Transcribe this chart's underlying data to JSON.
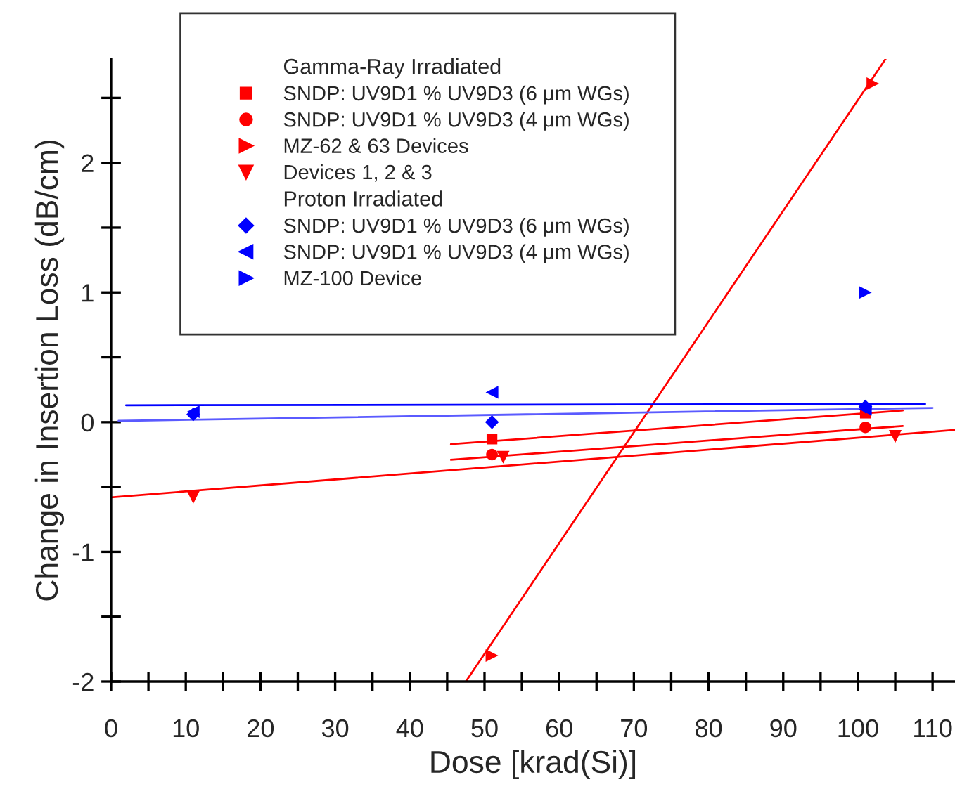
{
  "chart_data": {
    "type": "scatter",
    "xlabel": "Dose [krad(Si)]",
    "ylabel": "Change in Insertion Loss (dB/cm)",
    "annotations": [
      "Gamma-Ray Irradiated",
      "Proton Irradiated"
    ],
    "xlim": [
      0,
      113
    ],
    "ylim": [
      -2,
      2.8
    ],
    "xticks": [
      0,
      {
        "value": 5,
        "label": null
      },
      10,
      {
        "value": 15,
        "label": null
      },
      20,
      {
        "value": 25,
        "label": null
      },
      30,
      {
        "value": 35,
        "label": null
      },
      40,
      {
        "value": 45,
        "label": null
      },
      50,
      {
        "value": 55,
        "label": null
      },
      60,
      {
        "value": 65,
        "label": null
      },
      70,
      {
        "value": 75,
        "label": null
      },
      80,
      {
        "value": 85,
        "label": null
      },
      90,
      {
        "value": 95,
        "label": null
      },
      100,
      {
        "value": 105,
        "label": null
      },
      110
    ],
    "yticks": [
      -2,
      {
        "value": -1.5,
        "label": null
      },
      -1,
      {
        "value": -0.5,
        "label": null
      },
      0,
      {
        "value": 0.5,
        "label": null
      },
      1,
      {
        "value": 1.5,
        "label": null
      },
      2,
      {
        "value": 2.5,
        "label": null
      }
    ],
    "legend": "top left",
    "grid": false,
    "series": [
      {
        "name": "SNDP: UV9D1 % UV9D3 (6 μm WGs)",
        "color": "#ff0000",
        "marker": "square",
        "x": [
          51,
          101
        ],
        "values": [
          -0.13,
          0.07
        ]
      },
      {
        "name": "SNDP: UV9D1 % UV9D3 (4 μm WGs)",
        "color": "#ff0000",
        "marker": "circle",
        "x": [
          51,
          101
        ],
        "values": [
          -0.25,
          -0.04
        ]
      },
      {
        "name": "MZ-62 & 63 Devices",
        "color": "#ff0000",
        "marker": "triangle_right",
        "x": [
          51,
          102
        ],
        "values": [
          -1.8,
          2.61
        ]
      },
      {
        "name": "Devices 1, 2 & 3",
        "color": "#ff0000",
        "marker": "triangle_down",
        "x": [
          11,
          52.5,
          105
        ],
        "values": [
          -0.58,
          -0.27,
          -0.11
        ]
      },
      {
        "name": "SNDP: UV9D1 % UV9D3 (6 μm WGs)",
        "color": "#0000ff",
        "marker": "diamond",
        "x": [
          11,
          51,
          101
        ],
        "values": [
          0.06,
          0.0,
          0.12
        ]
      },
      {
        "name": "SNDP: UV9D1 % UV9D3 (4 μm WGs)",
        "color": "#0000ff",
        "marker": "triangle_left",
        "x": [
          11,
          51,
          101
        ],
        "values": [
          0.08,
          0.23,
          0.1
        ]
      },
      {
        "name": "MZ-100 Device",
        "color": "#0000ff",
        "marker": "triangle_right",
        "x": [
          101
        ],
        "values": [
          1.0
        ]
      },
      {
        "type": "line",
        "color": "#ff0000",
        "x": [
          45.5,
          106
        ],
        "values": [
          -0.17,
          0.09
        ]
      },
      {
        "type": "line",
        "color": "#ff0000",
        "x": [
          45.5,
          106
        ],
        "values": [
          -0.29,
          -0.03
        ]
      },
      {
        "type": "line",
        "color": "#ff0000",
        "x": [
          0,
          113
        ],
        "values": [
          -0.58,
          -0.06
        ]
      },
      {
        "type": "line",
        "color": "#ff0000",
        "x": [
          47.5,
          103.7
        ],
        "values": [
          -2,
          2.8
        ]
      },
      {
        "type": "line",
        "color": "#0000ff",
        "x": [
          2,
          109
        ],
        "values": [
          0.13,
          0.14
        ]
      },
      {
        "type": "line",
        "color": "#5a5aff",
        "x": [
          1,
          110
        ],
        "values": [
          0.01,
          0.11
        ]
      }
    ]
  }
}
